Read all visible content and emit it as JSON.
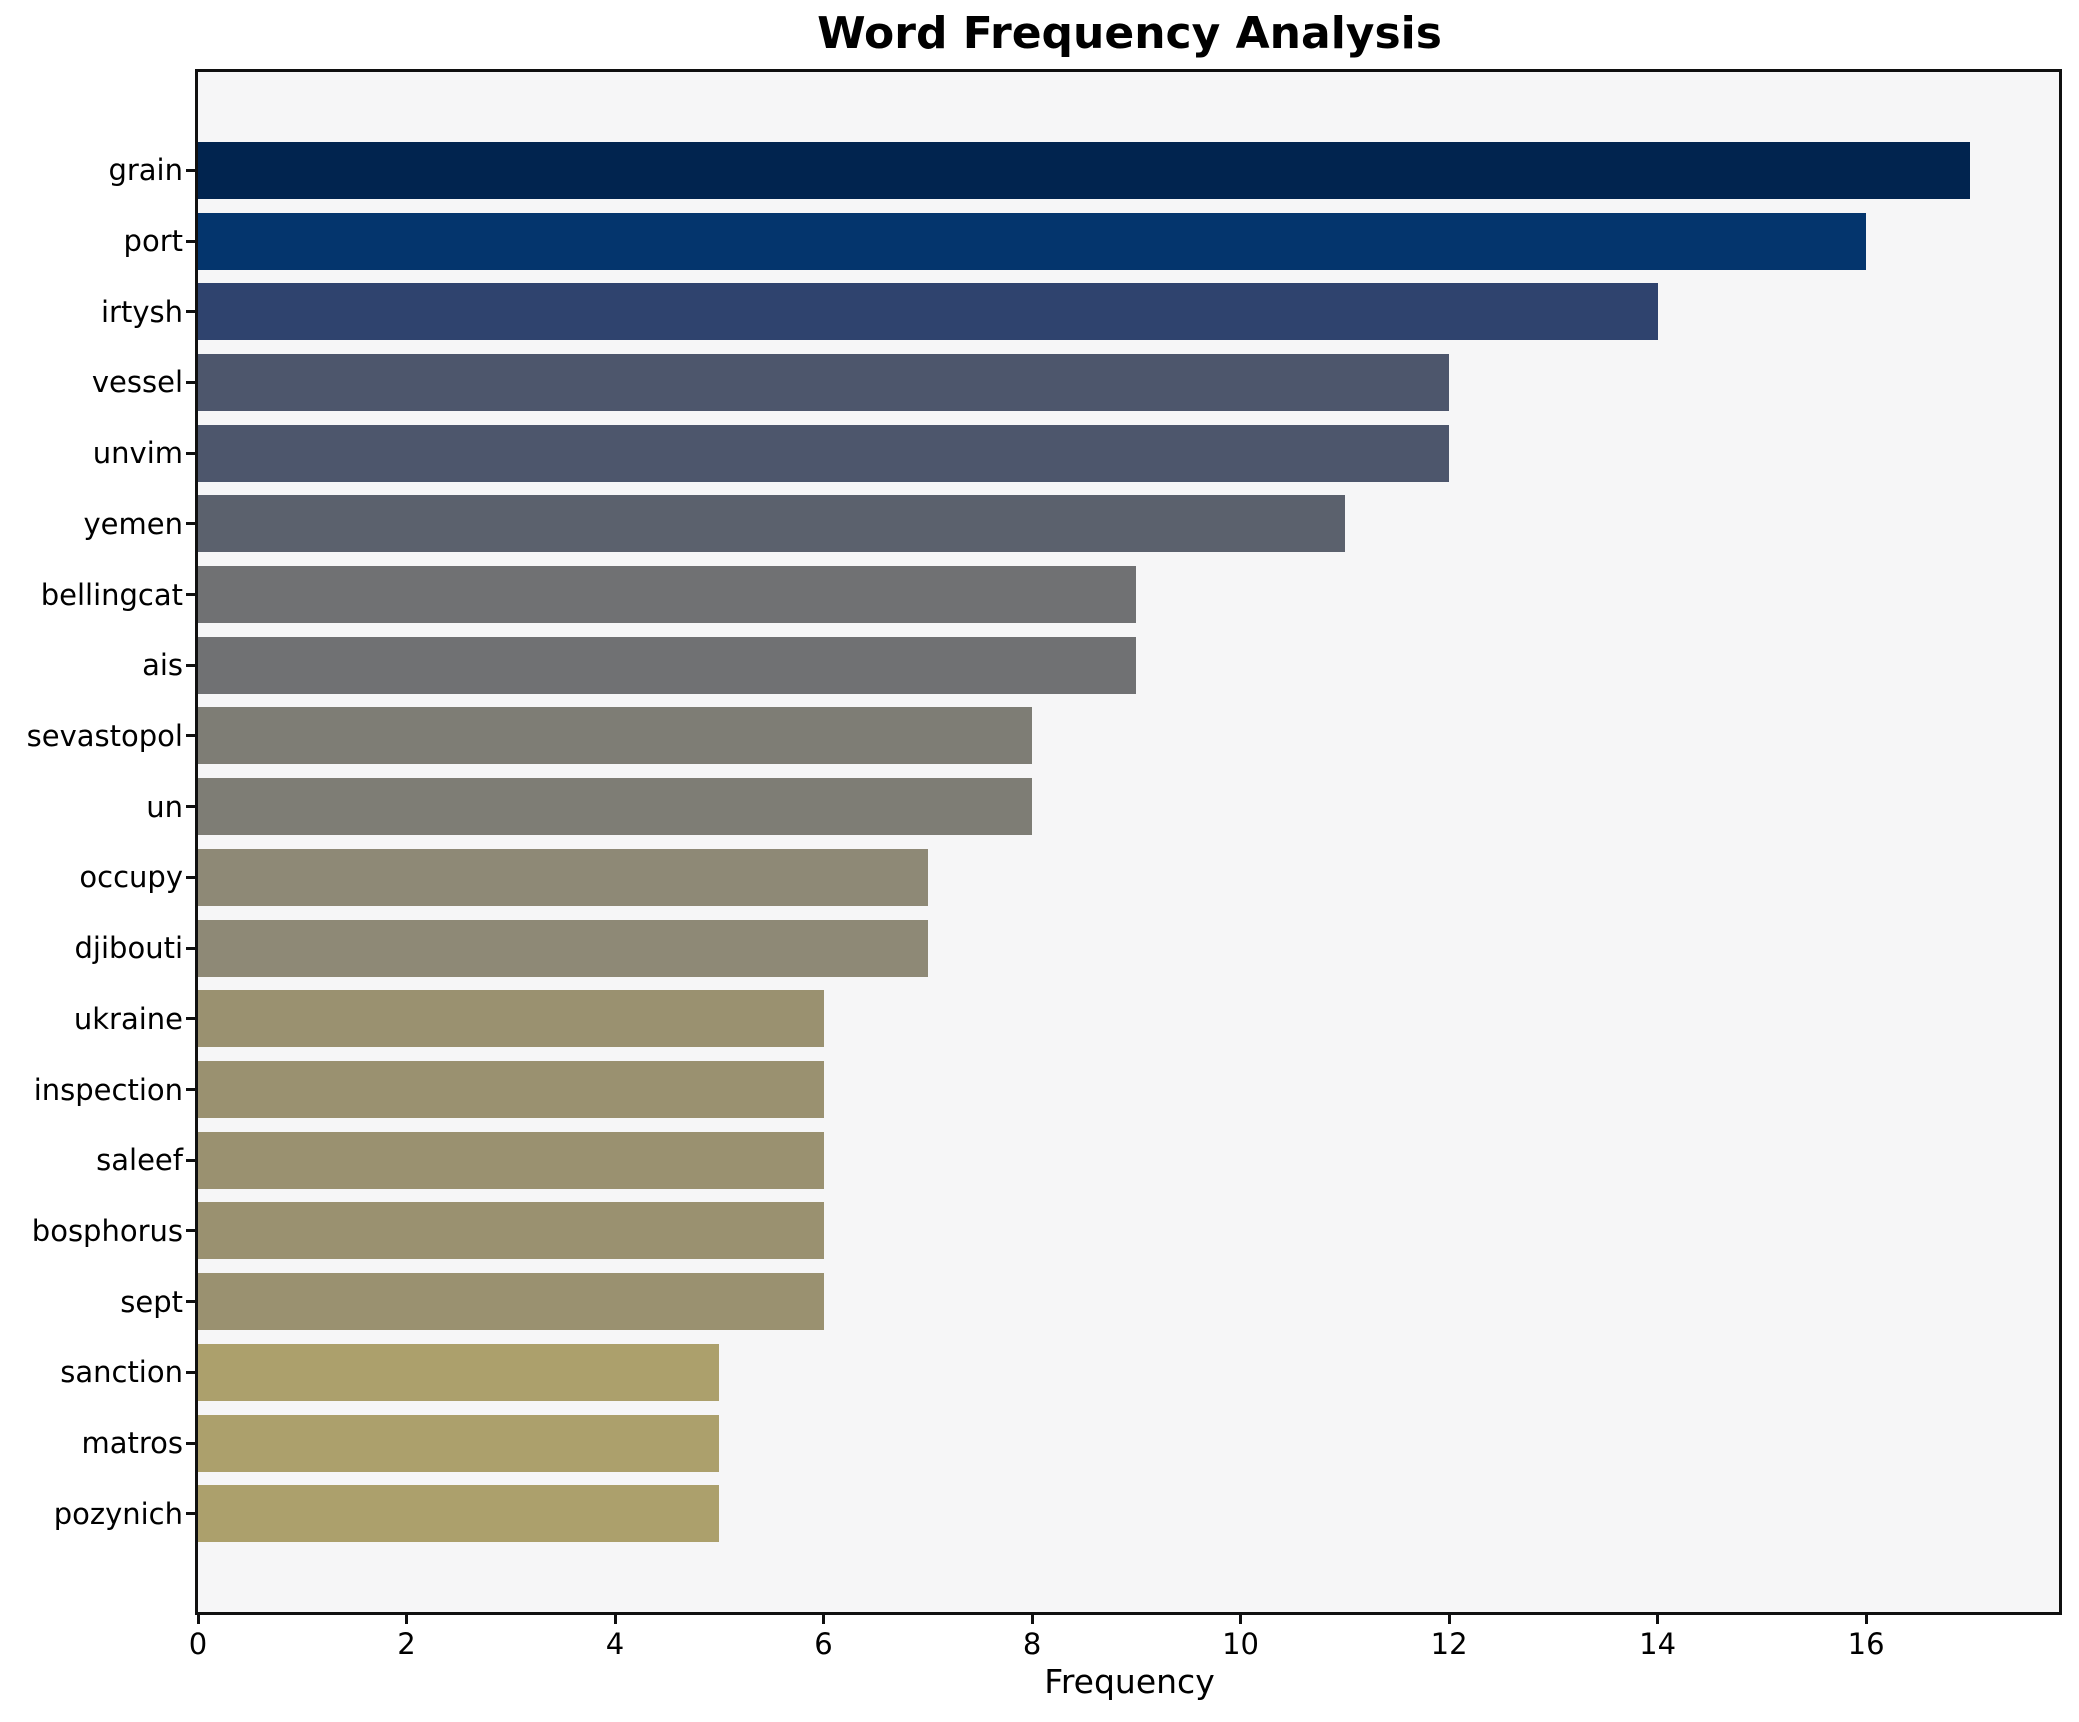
{
  "chart_data": {
    "type": "bar",
    "orientation": "horizontal",
    "title": "Word Frequency Analysis",
    "xlabel": "Frequency",
    "ylabel": "",
    "categories": [
      "grain",
      "port",
      "irtysh",
      "vessel",
      "unvim",
      "yemen",
      "bellingcat",
      "ais",
      "sevastopol",
      "un",
      "occupy",
      "djibouti",
      "ukraine",
      "inspection",
      "saleef",
      "bosphorus",
      "sept",
      "sanction",
      "matros",
      "pozynich"
    ],
    "values": [
      17,
      16,
      14,
      12,
      12,
      11,
      9,
      9,
      8,
      8,
      7,
      7,
      6,
      6,
      6,
      6,
      6,
      5,
      5,
      5
    ],
    "bar_colors": [
      "#01244f",
      "#04356d",
      "#2f436e",
      "#4d566c",
      "#4d566c",
      "#5b616d",
      "#707173",
      "#707173",
      "#7e7d75",
      "#7e7d75",
      "#8e8976",
      "#8e8976",
      "#9a9170",
      "#9a9170",
      "#9a9170",
      "#9a9170",
      "#9a9170",
      "#aca06c",
      "#aca06c",
      "#aca06c"
    ],
    "xticks": [
      0,
      2,
      4,
      6,
      8,
      10,
      12,
      14,
      16
    ],
    "xlim": [
      0,
      17.85
    ],
    "grid": false,
    "legend_position": "none",
    "plot_bg": "#f6f6f7",
    "figure_bg": "#ffffff",
    "spine_color": "#101010",
    "text_color": "#000000"
  }
}
